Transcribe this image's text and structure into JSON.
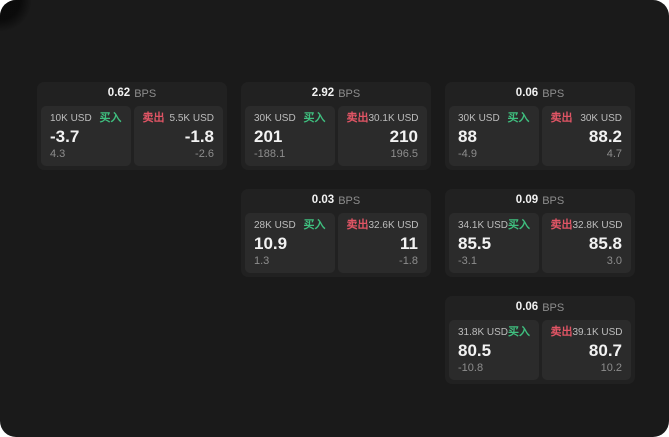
{
  "colors": {
    "page_bg": "#1a1a1a",
    "card_bg": "#212121",
    "panel_bg": "#2b2b2b",
    "buy_green": "#3fbf7f",
    "sell_red": "#e15565",
    "text_primary": "#f2f2f2",
    "text_label": "#bdbdbd",
    "text_muted": "#8d8d8d"
  },
  "labels": {
    "bps": "BPS",
    "buy": "买入",
    "sell": "卖出"
  },
  "cards": [
    {
      "bps": "0.62",
      "col": 1,
      "row": 1,
      "buy": {
        "size": "10K USD",
        "price": "-3.7",
        "delta": "4.3"
      },
      "sell": {
        "size": "5.5K USD",
        "price": "-1.8",
        "delta": "-2.6"
      }
    },
    {
      "bps": "2.92",
      "col": 2,
      "row": 1,
      "buy": {
        "size": "30K USD",
        "price": "201",
        "delta": "-188.1"
      },
      "sell": {
        "size": "30.1K USD",
        "price": "210",
        "delta": "196.5"
      }
    },
    {
      "bps": "0.06",
      "col": 3,
      "row": 1,
      "buy": {
        "size": "30K USD",
        "price": "88",
        "delta": "-4.9"
      },
      "sell": {
        "size": "30K USD",
        "price": "88.2",
        "delta": "4.7"
      }
    },
    {
      "bps": "0.03",
      "col": 2,
      "row": 2,
      "buy": {
        "size": "28K USD",
        "price": "10.9",
        "delta": "1.3"
      },
      "sell": {
        "size": "32.6K USD",
        "price": "11",
        "delta": "-1.8"
      }
    },
    {
      "bps": "0.09",
      "col": 3,
      "row": 2,
      "buy": {
        "size": "34.1K USD",
        "price": "85.5",
        "delta": "-3.1"
      },
      "sell": {
        "size": "32.8K USD",
        "price": "85.8",
        "delta": "3.0"
      }
    },
    {
      "bps": "0.06",
      "col": 3,
      "row": 3,
      "buy": {
        "size": "31.8K USD",
        "price": "80.5",
        "delta": "-10.8"
      },
      "sell": {
        "size": "39.1K USD",
        "price": "80.7",
        "delta": "10.2"
      }
    }
  ]
}
